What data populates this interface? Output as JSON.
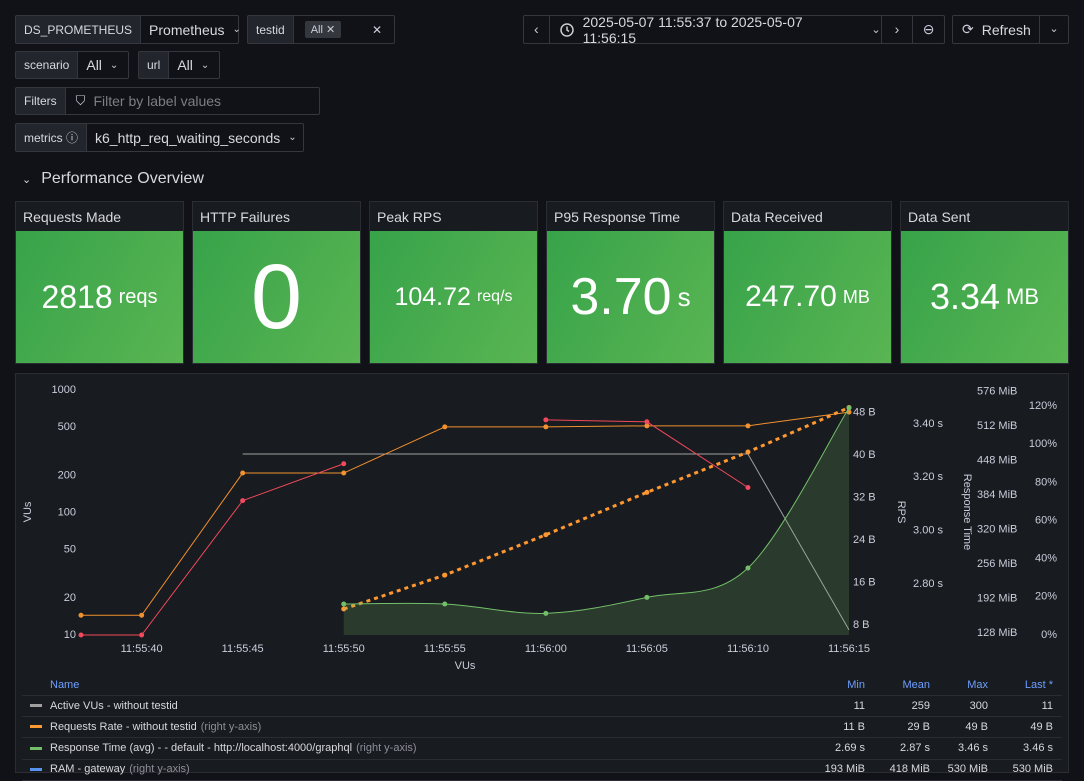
{
  "toolbar": {
    "datasource_label": "DS_PROMETHEUS",
    "datasource_value": "Prometheus",
    "testid_label": "testid",
    "testid_chip": "All",
    "time_range": "2025-05-07 11:55:37 to 2025-05-07 11:56:15",
    "refresh": "Refresh"
  },
  "variables": {
    "scenario_label": "scenario",
    "scenario_value": "All",
    "url_label": "url",
    "url_value": "All",
    "filters_label": "Filters",
    "filters_placeholder": "Filter by label values",
    "metrics_label": "metrics",
    "metrics_value": "k6_http_req_waiting_seconds"
  },
  "row_title": "Performance Overview",
  "stats": [
    {
      "title": "Requests Made",
      "value": "2818",
      "unit": "reqs"
    },
    {
      "title": "HTTP Failures",
      "value": "0"
    },
    {
      "title": "Peak RPS",
      "value": "104.72",
      "unit": "req/s"
    },
    {
      "title": "P95 Response Time",
      "value": "3.70",
      "unit": "s"
    },
    {
      "title": "Data Received",
      "value": "247.70",
      "unit": "MB"
    },
    {
      "title": "Data Sent",
      "value": "3.34",
      "unit": "MB"
    }
  ],
  "chart_data": {
    "type": "line",
    "x_label": "VUs",
    "y_label": "VUs",
    "y2_label": "RPS",
    "y3_label": "Response Time",
    "xlim": [
      "11:55:37",
      "11:56:15"
    ],
    "xticks": [
      "11:55:40",
      "11:55:45",
      "11:55:50",
      "11:55:55",
      "11:56:00",
      "11:56:05",
      "11:56:10",
      "11:56:15"
    ],
    "log_scale": true,
    "ylim": [
      10,
      1000
    ],
    "yticks": [
      10,
      20,
      50,
      100,
      200,
      500,
      1000
    ],
    "y2lim": [
      6.1,
      52.3
    ],
    "y2ticks": [
      {
        "value": 8,
        "label": "8 B"
      },
      {
        "value": 16,
        "label": "16 B"
      },
      {
        "value": 24,
        "label": "24 B"
      },
      {
        "value": 32,
        "label": "32 B"
      },
      {
        "value": 40,
        "label": "40 B"
      },
      {
        "value": 48,
        "label": "48 B"
      }
    ],
    "y3lim": [
      2.609,
      3.527
    ],
    "y3ticks": [
      {
        "value": 2.8,
        "label": "2.80 s"
      },
      {
        "value": 3.0,
        "label": "3.00 s"
      },
      {
        "value": 3.2,
        "label": "3.20 s"
      },
      {
        "value": 3.4,
        "label": "3.40 s"
      }
    ],
    "y4lim": [
      124.3,
      579
    ],
    "y4ticks": [
      {
        "value": 128,
        "label": "128 MiB"
      },
      {
        "value": 192,
        "label": "192 MiB"
      },
      {
        "value": 256,
        "label": "256 MiB"
      },
      {
        "value": 320,
        "label": "320 MiB"
      },
      {
        "value": 384,
        "label": "384 MiB"
      },
      {
        "value": 448,
        "label": "448 MiB"
      },
      {
        "value": 512,
        "label": "512 MiB"
      },
      {
        "value": 576,
        "label": "576 MiB"
      }
    ],
    "y5lim": [
      0,
      128.4
    ],
    "y5ticks": [
      {
        "value": 0,
        "label": "0%"
      },
      {
        "value": 20,
        "label": "20%"
      },
      {
        "value": 40,
        "label": "40%"
      },
      {
        "value": 60,
        "label": "60%"
      },
      {
        "value": 80,
        "label": "80%"
      },
      {
        "value": 100,
        "label": "100%"
      },
      {
        "value": 120,
        "label": "120%"
      }
    ],
    "series": [
      {
        "color": "#a0a0a0",
        "axis": "y",
        "x": [
          "11:55:45",
          "11:56:10",
          "11:56:15"
        ],
        "values": [
          300,
          300,
          11
        ]
      },
      {
        "color": "#f2912f",
        "axis": "y",
        "points": true,
        "x": [
          "11:55:37",
          "11:55:40",
          "11:55:45",
          "11:55:50",
          "11:55:55",
          "11:56:00",
          "11:56:05",
          "11:56:10",
          "11:56:15"
        ],
        "values": [
          14.5,
          14.5,
          210,
          210,
          500,
          500,
          510,
          510,
          660
        ]
      },
      {
        "color": "#f2495c",
        "axis": "y",
        "points": true,
        "x": [
          "11:55:37",
          "11:55:40",
          "11:55:45",
          "11:55:50",
          "11:55:55",
          "11:56:00",
          "11:56:05",
          "11:56:10"
        ],
        "values": [
          10,
          10,
          125,
          250,
          null,
          570,
          550,
          160
        ]
      },
      {
        "color": "#ff9830",
        "axis": "y2",
        "dashed": true,
        "points": true,
        "x": [
          "11:55:50",
          "11:55:55",
          "11:56:00",
          "11:56:05",
          "11:56:10",
          "11:56:15"
        ],
        "values": [
          11,
          17.4,
          25,
          33,
          40.6,
          49
        ]
      },
      {
        "color": "#73bf69",
        "axis": "y3",
        "area": true,
        "points": true,
        "x": [
          "11:55:50",
          "11:55:55",
          "11:56:00",
          "11:56:05",
          "11:56:10",
          "11:56:15"
        ],
        "values": [
          2.725,
          2.725,
          2.69,
          2.75,
          2.86,
          3.46
        ]
      }
    ]
  },
  "legend": {
    "columns": [
      "Name",
      "Min",
      "Mean",
      "Max",
      "Last *"
    ],
    "rows": [
      {
        "name": "Active VUs - without testid",
        "color": "#a0a0a0",
        "min": "11",
        "mean": "259",
        "max": "300",
        "last": "11"
      },
      {
        "name": "Requests Rate - without testid",
        "suffix": "(right y-axis)",
        "color": "#ff9830",
        "dashed": true,
        "min": "11 B",
        "mean": "29 B",
        "max": "49 B",
        "last": "49 B"
      },
      {
        "name": "Response Time (avg) - - default - http://localhost:4000/graphql",
        "suffix": "(right y-axis)",
        "color": "#73bf69",
        "min": "2.69 s",
        "mean": "2.87 s",
        "max": "3.46 s",
        "last": "3.46 s"
      },
      {
        "name": "RAM - gateway",
        "suffix": "(right y-axis)",
        "color": "#5794f2",
        "min": "193 MiB",
        "mean": "418 MiB",
        "max": "530 MiB",
        "last": "530 MiB"
      }
    ]
  }
}
